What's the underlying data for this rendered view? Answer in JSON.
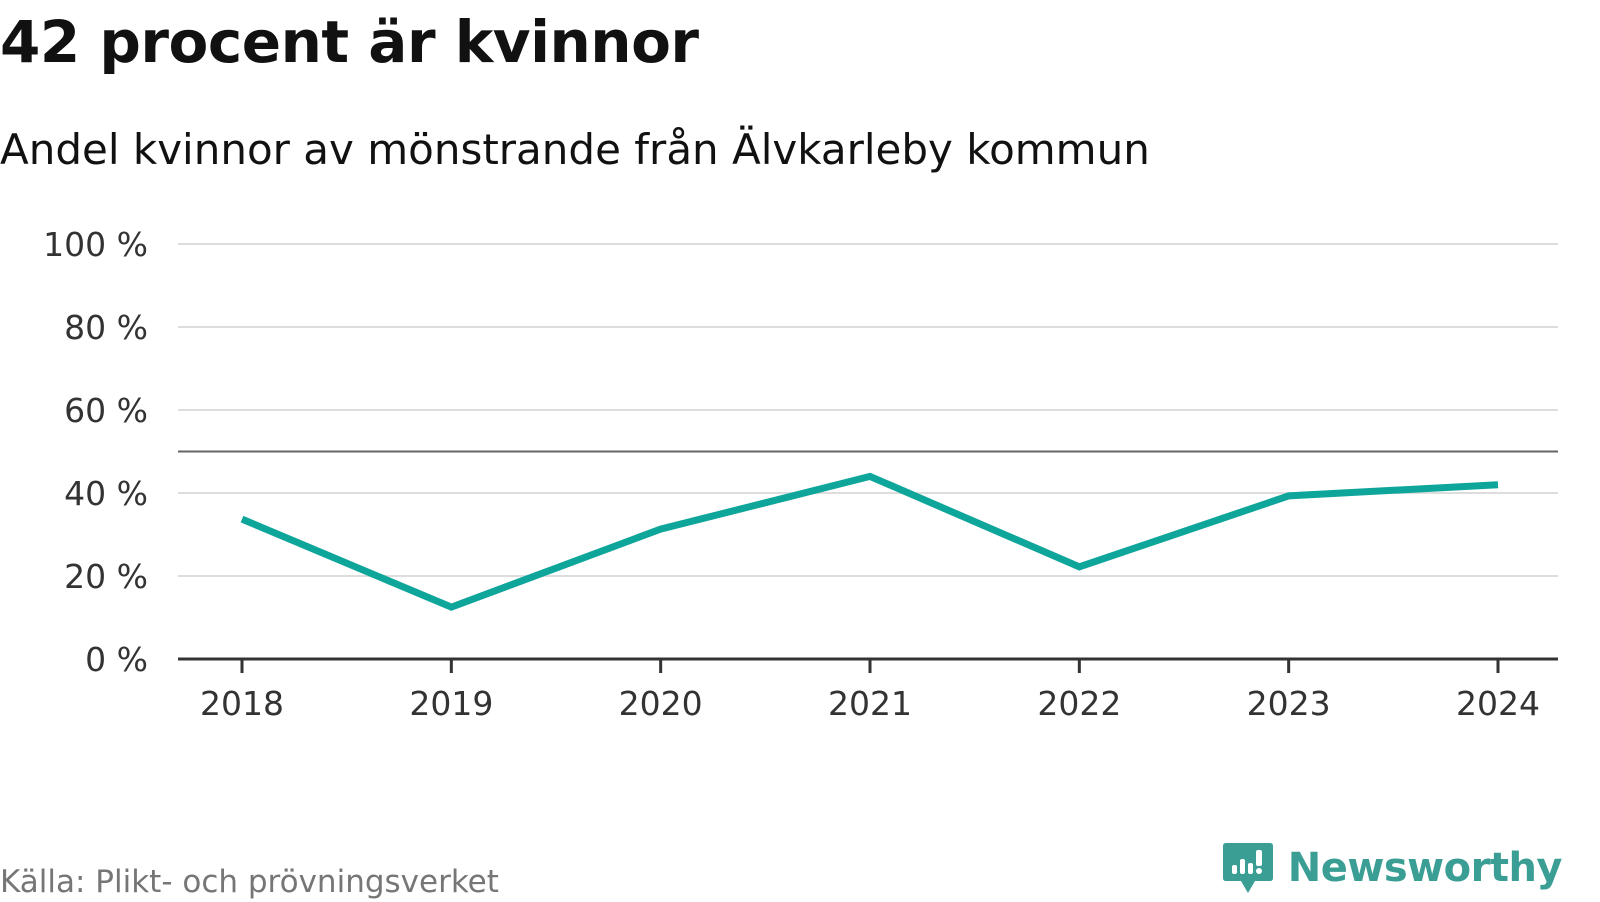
{
  "title": "42 procent är kvinnor",
  "subtitle": "Andel kvinnor av mönstrande från Älvkarleby kommun",
  "source": "Källa: Plikt- och prövningsverket",
  "brand": {
    "name": "Newsworthy",
    "icon": "newsworthy-logo-icon",
    "color": "#3a9e95"
  },
  "chart_data": {
    "type": "line",
    "categories": [
      "2018",
      "2019",
      "2020",
      "2021",
      "2022",
      "2023",
      "2024"
    ],
    "series": [
      {
        "values": [
          33.7,
          12.5,
          31.3,
          44.0,
          22.2,
          39.3,
          42.0
        ],
        "color": "#0ea59a"
      }
    ],
    "ylim": [
      0,
      100
    ],
    "yticks": [
      0,
      20,
      40,
      60,
      80,
      100
    ],
    "ytick_labels": [
      "0 %",
      "20 %",
      "40 %",
      "60 %",
      "80 %",
      "100 %"
    ],
    "reference_line": 50,
    "grid": true,
    "xlabel": "",
    "ylabel": ""
  }
}
